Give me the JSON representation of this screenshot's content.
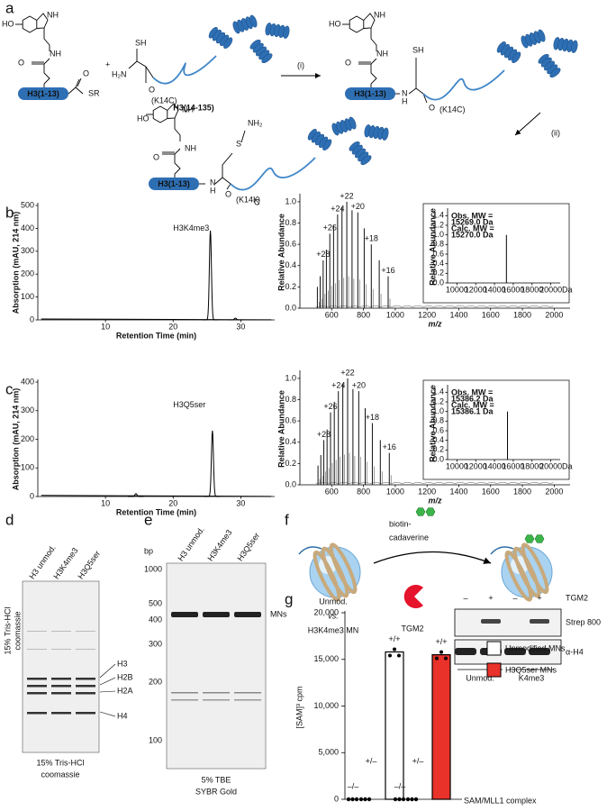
{
  "panel_labels": {
    "a": "a",
    "b": "b",
    "c": "c",
    "d": "d",
    "e": "e",
    "f": "f",
    "g": "g"
  },
  "a": {
    "atoms": [
      "HO",
      "NH",
      "NH",
      "O",
      "O",
      "SR",
      "SH",
      "H₂N",
      "O",
      "HO",
      "NH",
      "NH",
      "O",
      "N",
      "H",
      "SH",
      "O",
      "HO",
      "NH",
      "NH",
      "O",
      "NH₂",
      "S",
      "N",
      "H",
      "O"
    ],
    "plus": "+",
    "step_i": "(i)",
    "step_ii": "(ii)",
    "peptide": [
      "H3(1-13)",
      "H3(1-13)",
      "H3(1-13)"
    ],
    "protein": "H3(14-135)",
    "mutation": [
      "(K14C)",
      "(K14C)"
    ],
    "product_mutation": [
      "(K14K",
      "C",
      ")"
    ]
  },
  "b": {
    "hplc": {
      "type": "line",
      "title": "H3K4me3",
      "x_label": "Retention Time (min)",
      "y_label": "Absorption (mAU, 214 nm)",
      "xlim": [
        0,
        35
      ],
      "ylim": [
        0,
        500
      ],
      "xticks": [
        10,
        20,
        30
      ],
      "yticks": [
        0,
        100,
        200,
        300,
        400,
        500
      ],
      "peaks": [
        {
          "x": 25.5,
          "y": 390
        },
        {
          "x": 29.2,
          "y": 8
        }
      ]
    },
    "ms": {
      "type": "line",
      "x_label": "m/z",
      "y_label": "Relative Abundance",
      "xlim": [
        400,
        2100
      ],
      "ylim": [
        0,
        1.05
      ],
      "xticks": [
        600,
        800,
        1000,
        1200,
        1400,
        1600,
        1800,
        2000
      ],
      "yticks": [
        {
          "value": 0,
          "label": "0.0"
        },
        {
          "value": 0.2,
          "label": "0.2"
        },
        {
          "value": 0.4,
          "label": "0.4"
        },
        {
          "value": 0.6,
          "label": "0.6"
        },
        {
          "value": 0.8,
          "label": "0.8"
        },
        {
          "value": 1,
          "label": "1.0"
        }
      ],
      "peaks": [
        {
          "x": 955.4,
          "y": 0.3,
          "label": "+16"
        },
        {
          "x": 899.2,
          "y": 0.45
        },
        {
          "x": 849.3,
          "y": 0.6,
          "label": "+18"
        },
        {
          "x": 804.7,
          "y": 0.75
        },
        {
          "x": 764.5,
          "y": 0.9,
          "label": "+20"
        },
        {
          "x": 728.1,
          "y": 0.92
        },
        {
          "x": 695.1,
          "y": 1,
          "label": "+22"
        },
        {
          "x": 664.9,
          "y": 0.95
        },
        {
          "x": 637.3,
          "y": 0.88,
          "label": "+24"
        },
        {
          "x": 611.8,
          "y": 0.78
        },
        {
          "x": 588.3,
          "y": 0.7,
          "label": "+26"
        },
        {
          "x": 566.6,
          "y": 0.55
        },
        {
          "x": 546.4,
          "y": 0.45,
          "label": "+28"
        },
        {
          "x": 527.6,
          "y": 0.3
        },
        {
          "x": 510,
          "y": 0.2
        }
      ]
    },
    "inset": {
      "type": "line",
      "y_label": "Relative Abundance",
      "x_unit": "Da",
      "xlim": [
        9000,
        21000
      ],
      "ylim": [
        0,
        1.5
      ],
      "xticks": [
        10000,
        12000,
        14000,
        16000,
        18000,
        20000
      ],
      "yticks": [
        {
          "value": 0,
          "label": "0.0"
        },
        {
          "value": 0.2,
          "label": "0.2"
        },
        {
          "value": 0.4,
          "label": "0.4"
        },
        {
          "value": 0.6,
          "label": "0.6"
        },
        {
          "value": 0.8,
          "label": "0.8"
        },
        {
          "value": 1,
          "label": "1.0"
        },
        {
          "value": 1.2,
          "label": "1.2"
        },
        {
          "value": 1.4,
          "label": "1.4"
        }
      ],
      "notes": [
        "Obs. MW =",
        "15269.0 Da",
        "Calc. MW =",
        "15270.0 Da"
      ],
      "peaks": [
        {
          "x": 15270,
          "y": 1
        }
      ]
    }
  },
  "c": {
    "hplc": {
      "type": "line",
      "title": "H3Q5ser",
      "x_label": "Retention Time (min)",
      "y_label": "Absorption (mAU, 214 nm)",
      "xlim": [
        0,
        35
      ],
      "ylim": [
        0,
        400
      ],
      "xticks": [
        10,
        20,
        30
      ],
      "yticks": [
        0,
        100,
        200,
        300,
        400
      ],
      "peaks": [
        {
          "x": 14.5,
          "y": 10
        },
        {
          "x": 25.8,
          "y": 230
        }
      ]
    },
    "ms": {
      "type": "line",
      "x_label": "m/z",
      "y_label": "Relative Abundance",
      "xlim": [
        400,
        2100
      ],
      "ylim": [
        0,
        1.05
      ],
      "xticks": [
        600,
        800,
        1000,
        1200,
        1400,
        1600,
        1800,
        2000
      ],
      "yticks": [
        {
          "value": 0,
          "label": "0.0"
        },
        {
          "value": 0.2,
          "label": "0.2"
        },
        {
          "value": 0.4,
          "label": "0.4"
        },
        {
          "value": 0.6,
          "label": "0.6"
        },
        {
          "value": 0.8,
          "label": "0.8"
        },
        {
          "value": 1,
          "label": "1.0"
        }
      ],
      "peaks": [
        {
          "x": 962.6,
          "y": 0.3,
          "label": "+16"
        },
        {
          "x": 906.1,
          "y": 0.42
        },
        {
          "x": 855.8,
          "y": 0.58,
          "label": "+18"
        },
        {
          "x": 810.8,
          "y": 0.72
        },
        {
          "x": 770.3,
          "y": 0.88,
          "label": "+20"
        },
        {
          "x": 733.7,
          "y": 0.9
        },
        {
          "x": 700.4,
          "y": 1,
          "label": "+22"
        },
        {
          "x": 670,
          "y": 0.95
        },
        {
          "x": 642.1,
          "y": 0.88,
          "label": "+24"
        },
        {
          "x": 616.4,
          "y": 0.78
        },
        {
          "x": 592.8,
          "y": 0.68,
          "label": "+26"
        },
        {
          "x": 570.9,
          "y": 0.52
        },
        {
          "x": 550.5,
          "y": 0.42,
          "label": "+28"
        },
        {
          "x": 531.6,
          "y": 0.28
        },
        {
          "x": 513.9,
          "y": 0.18
        }
      ]
    },
    "inset": {
      "type": "line",
      "y_label": "Relative Abundance",
      "x_unit": "Da",
      "xlim": [
        9000,
        21000
      ],
      "ylim": [
        0,
        1.5
      ],
      "xticks": [
        10000,
        12000,
        14000,
        16000,
        18000,
        20000
      ],
      "yticks": [
        {
          "value": 0,
          "label": "0.0"
        },
        {
          "value": 0.2,
          "label": "0.2"
        },
        {
          "value": 0.4,
          "label": "0.4"
        },
        {
          "value": 0.6,
          "label": "0.6"
        },
        {
          "value": 0.8,
          "label": "0.8"
        },
        {
          "value": 1,
          "label": "1.0"
        },
        {
          "value": 1.2,
          "label": "1.2"
        },
        {
          "value": 1.4,
          "label": "1.4"
        }
      ],
      "notes": [
        "Obs. MW =",
        "15386.2 Da",
        "Calc. MW =",
        "15386.1 Da"
      ],
      "peaks": [
        {
          "x": 15386,
          "y": 1
        }
      ]
    }
  },
  "d": {
    "lanes": [
      "H3 unmod.",
      "H3K4me3",
      "H3Q5ser"
    ],
    "side_label": [
      "15% Tris-HCl",
      "coomassie"
    ],
    "bands": [
      "H3",
      "H2B",
      "H2A",
      "H4"
    ],
    "caption": [
      "15% Tris-HCl",
      "coomassie"
    ]
  },
  "e": {
    "lanes": [
      "H3 unmod.",
      "H3K4me3",
      "H3Q5ser"
    ],
    "ladder_unit": "bp",
    "ladder": [
      "1000",
      "500",
      "400",
      "300",
      "200",
      "100"
    ],
    "band": "MNs",
    "caption": [
      "5% TBE",
      "SYBR Gold"
    ]
  },
  "f": {
    "reagent": [
      "biotin-",
      "cadaverine"
    ],
    "comparison": [
      "Unmod.",
      "vs.",
      "H3K4me3 MN"
    ],
    "enzyme": "TGM2",
    "blot_header": [
      "–",
      "+",
      "–",
      "+",
      "TGM2"
    ],
    "blot_rows": [
      "Strep 800",
      "α-H4"
    ],
    "blot_groups": [
      "Unmod.",
      "K4me3"
    ]
  },
  "g": {
    "chart_data": {
      "type": "bar",
      "y_label": "[SAM]³ cpm",
      "x_label": "SAM/MLL1 complex",
      "categories": [
        "–/–",
        "+/–",
        "+/+"
      ],
      "series": [
        {
          "name": "Unmodified MNs",
          "color": "#ffffff",
          "values": [
            0,
            0,
            15800
          ]
        },
        {
          "name": "H3Q5ser MNs",
          "color": "#e8322a",
          "values": [
            0,
            0,
            15500
          ]
        }
      ],
      "ylim": [
        0,
        20000
      ],
      "yticks": [
        0,
        {
          "value": 5000,
          "label": "5,000"
        },
        {
          "value": 10000,
          "label": "10,000"
        },
        {
          "value": 15000,
          "label": "15,000"
        },
        {
          "value": 20000,
          "label": "20,000"
        }
      ]
    }
  }
}
